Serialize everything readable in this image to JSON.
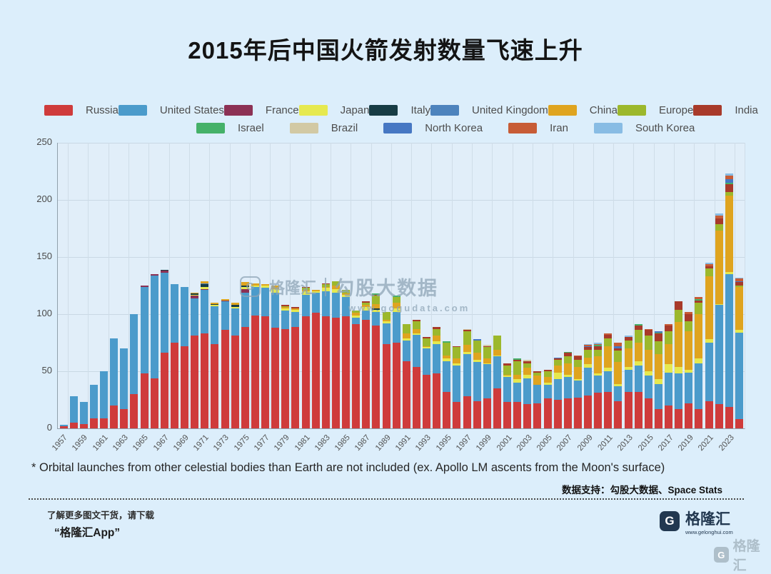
{
  "page": {
    "title": "2015年后中国火箭发射数量飞速上升"
  },
  "chart_data": {
    "type": "bar",
    "stacked": true,
    "title": "2015年后中国火箭发射数量飞速上升",
    "xlabel": "",
    "ylabel": "",
    "ylim": [
      0,
      250
    ],
    "yticks": [
      0,
      50,
      100,
      150,
      200,
      250
    ],
    "grid": true,
    "legend_position": "top",
    "x": [
      1957,
      1958,
      1959,
      1960,
      1961,
      1962,
      1963,
      1964,
      1965,
      1966,
      1967,
      1968,
      1969,
      1970,
      1971,
      1972,
      1973,
      1974,
      1975,
      1976,
      1977,
      1978,
      1979,
      1980,
      1981,
      1982,
      1983,
      1984,
      1985,
      1986,
      1987,
      1988,
      1989,
      1990,
      1991,
      1992,
      1993,
      1994,
      1995,
      1996,
      1997,
      1998,
      1999,
      2000,
      2001,
      2002,
      2003,
      2004,
      2005,
      2006,
      2007,
      2008,
      2009,
      2010,
      2011,
      2012,
      2013,
      2014,
      2015,
      2016,
      2017,
      2018,
      2019,
      2020,
      2021,
      2022,
      2023,
      2024
    ],
    "x_tick_labels": [
      "1957",
      "1959",
      "1961",
      "1963",
      "1965",
      "1967",
      "1969",
      "1971",
      "1973",
      "1975",
      "1977",
      "1979",
      "1981",
      "1983",
      "1985",
      "1987",
      "1989",
      "1991",
      "1993",
      "1995",
      "1997",
      "1999",
      "2001",
      "2003",
      "2005",
      "2007",
      "2009",
      "2011",
      "2013",
      "2015",
      "2017",
      "2019",
      "2021",
      "2023"
    ],
    "series": [
      {
        "key": "russia",
        "name": "Russia",
        "color": "#cf3b3b",
        "values": [
          2,
          5,
          4,
          9,
          9,
          20,
          17,
          30,
          48,
          44,
          66,
          75,
          72,
          81,
          83,
          74,
          86,
          81,
          89,
          99,
          98,
          88,
          87,
          89,
          98,
          101,
          98,
          97,
          98,
          91,
          95,
          90,
          74,
          75,
          59,
          54,
          47,
          48,
          32,
          23,
          28,
          24,
          26,
          35,
          23,
          23,
          21,
          22,
          26,
          25,
          26,
          27,
          29,
          31,
          32,
          24,
          32,
          32,
          26,
          17,
          20,
          17,
          22,
          17,
          24,
          21,
          19,
          8
        ]
      },
      {
        "key": "united-states",
        "name": "United States",
        "color": "#4b9bcb",
        "values": [
          1,
          23,
          19,
          29,
          41,
          59,
          53,
          70,
          76,
          90,
          70,
          51,
          52,
          33,
          38,
          33,
          25,
          24,
          30,
          25,
          25,
          31,
          16,
          13,
          19,
          18,
          22,
          22,
          17,
          6,
          8,
          12,
          18,
          27,
          18,
          28,
          23,
          26,
          27,
          32,
          37,
          34,
          30,
          28,
          22,
          17,
          23,
          16,
          12,
          18,
          19,
          15,
          24,
          15,
          18,
          13,
          19,
          23,
          20,
          22,
          29,
          31,
          27,
          40,
          51,
          87,
          116,
          76
        ]
      },
      {
        "key": "france",
        "name": "France",
        "color": "#8c3154",
        "values": [
          0,
          0,
          0,
          0,
          0,
          0,
          0,
          0,
          1,
          1,
          2,
          0,
          0,
          2,
          1,
          0,
          1,
          0,
          3,
          0,
          0,
          0,
          0,
          0,
          0,
          0,
          0,
          0,
          0,
          0,
          0,
          0,
          0,
          0,
          0,
          0,
          0,
          0,
          0,
          0,
          0,
          0,
          0,
          0,
          0,
          0,
          0,
          0,
          0,
          0,
          0,
          0,
          0,
          0,
          0,
          0,
          0,
          0,
          0,
          0,
          0,
          0,
          0,
          0,
          0,
          0,
          0,
          0
        ]
      },
      {
        "key": "japan",
        "name": "Japan",
        "color": "#e6e94f",
        "values": [
          0,
          0,
          0,
          0,
          0,
          0,
          0,
          0,
          0,
          0,
          0,
          0,
          0,
          1,
          2,
          1,
          0,
          1,
          2,
          1,
          2,
          3,
          2,
          2,
          3,
          1,
          3,
          3,
          2,
          2,
          3,
          2,
          2,
          3,
          2,
          1,
          1,
          2,
          2,
          2,
          2,
          2,
          1,
          1,
          1,
          3,
          3,
          0,
          2,
          6,
          2,
          1,
          3,
          2,
          3,
          2,
          3,
          4,
          4,
          4,
          7,
          6,
          2,
          4,
          3,
          1,
          2,
          2
        ]
      },
      {
        "key": "italy",
        "name": "Italy",
        "color": "#173c44",
        "values": [
          0,
          0,
          0,
          0,
          0,
          0,
          0,
          0,
          0,
          0,
          1,
          0,
          0,
          1,
          2,
          1,
          0,
          2,
          1,
          0,
          0,
          0,
          0,
          0,
          0,
          0,
          0,
          0,
          0,
          0,
          0,
          1,
          0,
          0,
          0,
          0,
          0,
          0,
          0,
          0,
          0,
          0,
          0,
          0,
          0,
          0,
          0,
          0,
          0,
          0,
          0,
          0,
          0,
          0,
          0,
          0,
          0,
          0,
          0,
          0,
          0,
          0,
          0,
          0,
          0,
          0,
          0,
          0
        ]
      },
      {
        "key": "united-kingdom",
        "name": "United Kingdom",
        "color": "#4d83bd",
        "values": [
          0,
          0,
          0,
          0,
          0,
          0,
          0,
          0,
          0,
          0,
          0,
          0,
          0,
          0,
          1,
          0,
          0,
          0,
          0,
          0,
          0,
          0,
          0,
          0,
          0,
          0,
          0,
          0,
          0,
          0,
          0,
          0,
          0,
          0,
          0,
          0,
          0,
          0,
          0,
          0,
          0,
          0,
          0,
          0,
          0,
          0,
          0,
          0,
          0,
          0,
          0,
          0,
          0,
          0,
          0,
          0,
          0,
          0,
          0,
          0,
          0,
          0,
          0,
          0,
          0,
          0,
          0,
          0
        ]
      },
      {
        "key": "china",
        "name": "China",
        "color": "#dfa41f",
        "values": [
          0,
          0,
          0,
          0,
          0,
          0,
          0,
          0,
          0,
          0,
          0,
          0,
          0,
          1,
          2,
          1,
          1,
          2,
          3,
          2,
          1,
          3,
          1,
          1,
          1,
          1,
          1,
          3,
          1,
          2,
          2,
          4,
          1,
          5,
          4,
          4,
          1,
          5,
          3,
          4,
          6,
          6,
          4,
          5,
          1,
          4,
          6,
          8,
          5,
          6,
          10,
          11,
          6,
          15,
          19,
          19,
          16,
          16,
          19,
          22,
          18,
          39,
          34,
          39,
          55,
          64,
          67,
          38
        ]
      },
      {
        "key": "europe",
        "name": "Europe",
        "color": "#9cb82c",
        "values": [
          0,
          0,
          0,
          0,
          0,
          0,
          0,
          0,
          0,
          0,
          0,
          0,
          0,
          0,
          0,
          0,
          0,
          0,
          0,
          0,
          0,
          0,
          1,
          0,
          2,
          0,
          2,
          4,
          3,
          2,
          2,
          7,
          7,
          5,
          8,
          7,
          7,
          6,
          11,
          10,
          12,
          11,
          10,
          12,
          8,
          12,
          4,
          3,
          5,
          5,
          6,
          6,
          7,
          6,
          7,
          10,
          7,
          11,
          12,
          11,
          11,
          11,
          9,
          10,
          7,
          6,
          3,
          1
        ]
      },
      {
        "key": "india",
        "name": "India",
        "color": "#a83a2a",
        "values": [
          0,
          0,
          0,
          0,
          0,
          0,
          0,
          0,
          0,
          0,
          0,
          0,
          0,
          0,
          0,
          0,
          0,
          0,
          0,
          0,
          0,
          0,
          1,
          1,
          1,
          0,
          1,
          0,
          0,
          0,
          1,
          1,
          0,
          0,
          0,
          1,
          1,
          2,
          0,
          1,
          1,
          0,
          1,
          0,
          2,
          1,
          2,
          1,
          1,
          1,
          3,
          3,
          2,
          3,
          3,
          2,
          3,
          4,
          5,
          7,
          5,
          7,
          6,
          2,
          2,
          5,
          7,
          3
        ]
      },
      {
        "key": "israel",
        "name": "Israel",
        "color": "#45b169",
        "values": [
          0,
          0,
          0,
          0,
          0,
          0,
          0,
          0,
          0,
          0,
          0,
          0,
          0,
          0,
          0,
          0,
          0,
          0,
          0,
          0,
          0,
          0,
          0,
          0,
          0,
          0,
          0,
          0,
          0,
          0,
          0,
          1,
          0,
          1,
          0,
          0,
          0,
          0,
          1,
          0,
          0,
          0,
          0,
          0,
          0,
          1,
          0,
          0,
          0,
          0,
          1,
          0,
          0,
          1,
          0,
          0,
          0,
          1,
          0,
          1,
          0,
          0,
          0,
          1,
          0,
          0,
          1,
          0
        ]
      },
      {
        "key": "brazil",
        "name": "Brazil",
        "color": "#d2c9a4",
        "values": [
          0,
          0,
          0,
          0,
          0,
          0,
          0,
          0,
          0,
          0,
          0,
          0,
          0,
          0,
          0,
          0,
          0,
          0,
          0,
          0,
          0,
          0,
          0,
          0,
          0,
          0,
          0,
          0,
          0,
          0,
          0,
          0,
          0,
          0,
          0,
          0,
          0,
          0,
          0,
          0,
          1,
          0,
          1,
          0,
          0,
          0,
          1,
          0,
          0,
          0,
          0,
          0,
          0,
          0,
          0,
          0,
          0,
          0,
          0,
          0,
          0,
          0,
          0,
          0,
          0,
          0,
          0,
          0
        ]
      },
      {
        "key": "north-korea",
        "name": "North Korea",
        "color": "#4677c3",
        "values": [
          0,
          0,
          0,
          0,
          0,
          0,
          0,
          0,
          0,
          0,
          0,
          0,
          0,
          0,
          0,
          0,
          0,
          0,
          0,
          0,
          0,
          0,
          0,
          0,
          0,
          0,
          0,
          0,
          0,
          0,
          0,
          0,
          0,
          0,
          0,
          0,
          0,
          0,
          0,
          0,
          0,
          1,
          0,
          0,
          0,
          0,
          0,
          0,
          0,
          1,
          0,
          0,
          1,
          0,
          0,
          2,
          0,
          0,
          0,
          1,
          0,
          0,
          0,
          0,
          0,
          0,
          3,
          1
        ]
      },
      {
        "key": "iran",
        "name": "Iran",
        "color": "#c75c36",
        "values": [
          0,
          0,
          0,
          0,
          0,
          0,
          0,
          0,
          0,
          0,
          0,
          0,
          0,
          0,
          0,
          0,
          0,
          0,
          0,
          0,
          0,
          0,
          0,
          0,
          0,
          0,
          0,
          0,
          0,
          0,
          0,
          0,
          0,
          0,
          0,
          0,
          0,
          0,
          0,
          0,
          0,
          0,
          0,
          0,
          0,
          0,
          0,
          0,
          0,
          0,
          0,
          1,
          1,
          1,
          1,
          3,
          0,
          0,
          1,
          0,
          1,
          0,
          2,
          2,
          2,
          2,
          3,
          2
        ]
      },
      {
        "key": "south-korea",
        "name": "South Korea",
        "color": "#88bce4",
        "values": [
          0,
          0,
          0,
          0,
          0,
          0,
          0,
          0,
          0,
          0,
          0,
          0,
          0,
          0,
          0,
          0,
          0,
          0,
          0,
          0,
          0,
          0,
          0,
          0,
          0,
          0,
          0,
          0,
          0,
          0,
          0,
          0,
          0,
          0,
          0,
          0,
          0,
          0,
          0,
          0,
          0,
          0,
          0,
          0,
          0,
          0,
          0,
          0,
          0,
          0,
          0,
          0,
          1,
          1,
          0,
          0,
          1,
          0,
          0,
          0,
          0,
          0,
          0,
          0,
          1,
          2,
          2,
          1
        ]
      }
    ]
  },
  "legend": {
    "row1_keys": [
      "russia",
      "united-states",
      "france",
      "japan",
      "italy",
      "united-kingdom",
      "china",
      "europe",
      "india"
    ],
    "row2_keys": [
      "israel",
      "brazil",
      "north-korea",
      "iran",
      "south-korea"
    ]
  },
  "watermark": {
    "g": "G",
    "brand": "格隆汇",
    "name": "勾股大数据",
    "url": "www.gogudata.com"
  },
  "footnote": "* Orbital launches from other celestial bodies than Earth are not included (ex. Apollo LM ascents from the Moon's surface)",
  "data_support": "数据支持：勾股大数据、Space Stats",
  "promo": {
    "line1": "了解更多图文干货，请下载",
    "line2": "“格隆汇App”"
  },
  "brand": {
    "g": "G",
    "name": "格隆汇",
    "url": "www.gelonghui.com"
  }
}
